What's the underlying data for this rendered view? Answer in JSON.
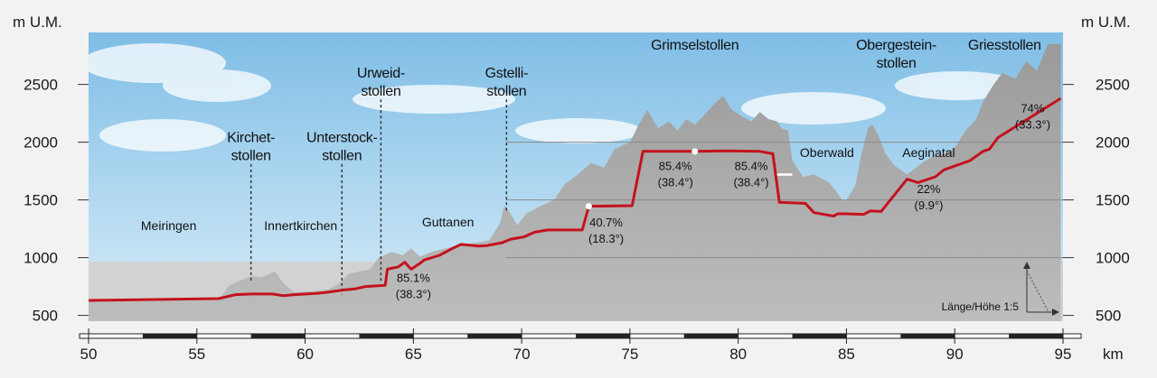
{
  "chart_data": {
    "type": "area",
    "title": "",
    "y_unit_label": "m U.M.",
    "x_unit_label": "km",
    "xlim": [
      50,
      95
    ],
    "ylim": [
      450,
      2950
    ],
    "x_ticks": [
      50,
      55,
      60,
      65,
      70,
      75,
      80,
      85,
      90,
      95
    ],
    "x_tick_labels": [
      "50",
      "55",
      "60",
      "65",
      "70",
      "75",
      "80",
      "85",
      "90",
      "95"
    ],
    "y_ticks": [
      500,
      1000,
      1500,
      2000,
      2500
    ],
    "y_tick_labels": [
      "500",
      "1000",
      "1500",
      "2000",
      "2500"
    ],
    "scale_note": "Länge/Höhe 1:5",
    "colors": {
      "route": "#c4121e",
      "terrain": "#a6a6a6",
      "sky": "#b9dcf0"
    },
    "series": [
      {
        "key": "route_profile",
        "x": [
          50,
          56,
          56.8,
          57.5,
          58.5,
          59,
          59.5,
          60.5,
          61,
          61.8,
          62.3,
          62.8,
          63.7,
          63.8,
          64.3,
          64.6,
          64.9,
          65.3,
          65.5,
          66.2,
          66.8,
          67.2,
          68,
          68.4,
          69.1,
          69.5,
          70.1,
          70.6,
          71.2,
          72.8,
          73.1,
          75.1,
          75.6,
          78,
          79.5,
          81,
          81.6,
          81.9,
          83.1,
          83.5,
          84.4,
          84.6,
          85,
          85.8,
          86.1,
          86.6,
          87.8,
          88.3,
          89.1,
          89.5,
          90.1,
          90.7,
          91.3,
          91.6,
          92,
          94.9
        ],
        "y": [
          630,
          645,
          680,
          685,
          685,
          670,
          680,
          690,
          700,
          720,
          730,
          750,
          760,
          900,
          920,
          960,
          900,
          950,
          980,
          1020,
          1080,
          1115,
          1100,
          1105,
          1130,
          1160,
          1180,
          1220,
          1240,
          1240,
          1445,
          1450,
          1920,
          1920,
          1925,
          1920,
          1900,
          1480,
          1470,
          1390,
          1360,
          1380,
          1380,
          1375,
          1405,
          1400,
          1680,
          1650,
          1700,
          1760,
          1800,
          1840,
          1920,
          1940,
          2040,
          2380
        ]
      },
      {
        "key": "terrain",
        "x": [
          50,
          56,
          56.5,
          57.5,
          58,
          58.6,
          59,
          59.5,
          61,
          61.6,
          62,
          63,
          63.4,
          64,
          64.5,
          64.9,
          65.3,
          66,
          67,
          68.5,
          69,
          69.2,
          69.5,
          69.8,
          70.2,
          70.8,
          71.5,
          72,
          72.6,
          73.2,
          73.8,
          74.3,
          75,
          75.4,
          75.8,
          76.3,
          76.8,
          77.2,
          77.6,
          78,
          78.5,
          79,
          79.3,
          79.7,
          80.2,
          80.6,
          81,
          81.4,
          81.8,
          82,
          82.3,
          82.5,
          83,
          83.5,
          84.2,
          84.5,
          84.8,
          85,
          85.4,
          85.7,
          86,
          86.2,
          86.5,
          86.8,
          87.2,
          87.8,
          88.5,
          89,
          89.5,
          90,
          90.5,
          91,
          91.3,
          91.8,
          92.2,
          92.8,
          93.3,
          93.8,
          94.3,
          94.9
        ],
        "y": [
          620,
          630,
          760,
          840,
          830,
          880,
          780,
          700,
          720,
          780,
          860,
          900,
          1000,
          1050,
          1020,
          1080,
          1010,
          1060,
          1100,
          1150,
          1300,
          1450,
          1380,
          1280,
          1380,
          1440,
          1500,
          1640,
          1720,
          1820,
          1780,
          1940,
          2000,
          2150,
          2280,
          2120,
          2180,
          2100,
          2200,
          2150,
          2250,
          2350,
          2400,
          2280,
          2220,
          2180,
          2260,
          2200,
          2180,
          2120,
          2100,
          1840,
          1700,
          1720,
          1650,
          1580,
          1500,
          1500,
          1620,
          1900,
          2130,
          2150,
          2050,
          1900,
          1800,
          1720,
          1820,
          1880,
          1900,
          1950,
          2100,
          2200,
          2350,
          2500,
          2600,
          2550,
          2700,
          2620,
          2850,
          2850
        ]
      }
    ],
    "tunnels": [
      {
        "name_line1": "Kirchet-",
        "name_line2": "stollen",
        "x": 57.5,
        "label_y": 2000,
        "line_top": 1810,
        "line_bottom": 800
      },
      {
        "name_line1": "Unterstock-",
        "name_line2": "stollen",
        "x": 61.7,
        "label_y": 2000,
        "line_top": 1810,
        "line_bottom": 680
      },
      {
        "name_line1": "Urweid-",
        "name_line2": "stollen",
        "x": 63.5,
        "label_y": 2560,
        "line_top": 2370,
        "line_bottom": 800
      },
      {
        "name_line1": "Gstelli-",
        "name_line2": "stollen",
        "x": 69.3,
        "label_y": 2560,
        "line_top": 2370,
        "line_bottom": 1400
      },
      {
        "name_line1": "Grimselstollen",
        "name_line2": "",
        "x": 78,
        "label_y": 2800,
        "line_top": 0,
        "line_bottom": 0
      },
      {
        "name_line1": "Obergestein-",
        "name_line2": "stollen",
        "x": 87.3,
        "label_y": 2800,
        "line_top": 0,
        "line_bottom": 0
      },
      {
        "name_line1": "Griesstollen",
        "name_line2": "",
        "x": 92.3,
        "label_y": 2800,
        "line_top": 0,
        "line_bottom": 0
      }
    ],
    "places": [
      {
        "name": "Meiringen",
        "x": 53.7,
        "y": 1240
      },
      {
        "name": "Innertkirchen",
        "x": 59.8,
        "y": 1240
      },
      {
        "name": "Guttanen",
        "x": 66.6,
        "y": 1270
      },
      {
        "name": "Oberwald",
        "x": 84.1,
        "y": 1870
      },
      {
        "name": "Aeginatal",
        "x": 88.8,
        "y": 1870
      }
    ],
    "gradients": [
      {
        "percent": "85.1%",
        "degrees": "(38.3°)",
        "x": 65,
        "y": 790
      },
      {
        "percent": "40.7%",
        "degrees": "(18.3°)",
        "x": 73.9,
        "y": 1270
      },
      {
        "percent": "85.4%",
        "degrees": "(38.4°)",
        "x": 77.1,
        "y": 1760
      },
      {
        "percent": "85.4%",
        "degrees": "(38.4°)",
        "x": 80.6,
        "y": 1760
      },
      {
        "percent": "22%",
        "degrees": "(9.9°)",
        "x": 88.8,
        "y": 1560
      },
      {
        "percent": "74%",
        "degrees": "(33.3°)",
        "x": 93.6,
        "y": 2260
      }
    ]
  }
}
